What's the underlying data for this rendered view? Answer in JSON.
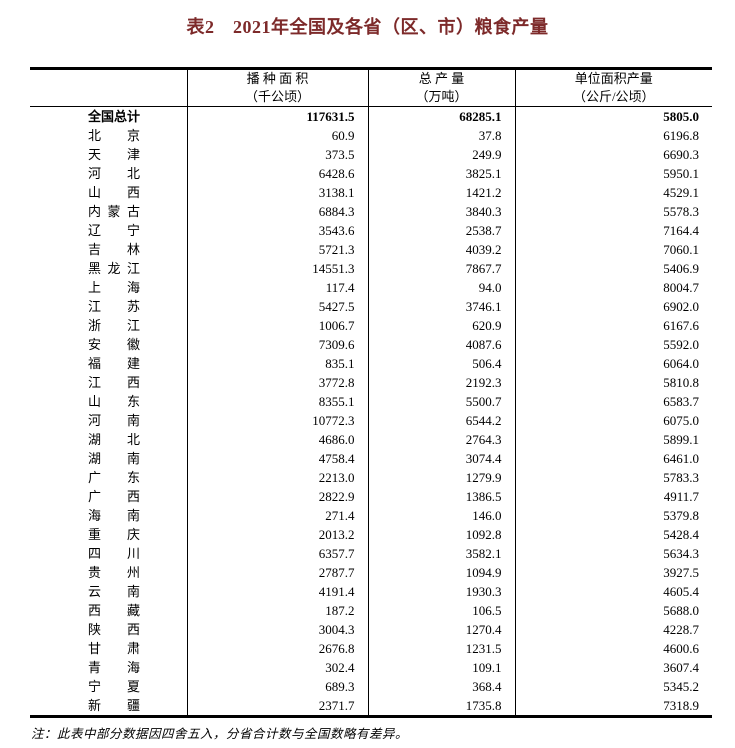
{
  "title": "表2　2021年全国及各省（区、市）粮食产量",
  "colors": {
    "title_text": "#7d2a2a",
    "border": "#000000",
    "body_text": "#000000",
    "background": "#ffffff"
  },
  "table": {
    "columns": [
      {
        "label": "",
        "unit": ""
      },
      {
        "label": "播 种 面 积",
        "unit": "（千公顷）"
      },
      {
        "label": "总 产 量",
        "unit": "（万吨）"
      },
      {
        "label": "单位面积产量",
        "unit": "（公斤/公顷）"
      }
    ],
    "rows": [
      {
        "region": "全国总计",
        "sown_area": "117631.5",
        "output": "68285.1",
        "yield": "5805.0",
        "bold": true
      },
      {
        "region": "北京",
        "sown_area": "60.9",
        "output": "37.8",
        "yield": "6196.8",
        "bold": false
      },
      {
        "region": "天津",
        "sown_area": "373.5",
        "output": "249.9",
        "yield": "6690.3",
        "bold": false
      },
      {
        "region": "河北",
        "sown_area": "6428.6",
        "output": "3825.1",
        "yield": "5950.1",
        "bold": false
      },
      {
        "region": "山西",
        "sown_area": "3138.1",
        "output": "1421.2",
        "yield": "4529.1",
        "bold": false
      },
      {
        "region": "内蒙古",
        "sown_area": "6884.3",
        "output": "3840.3",
        "yield": "5578.3",
        "bold": false
      },
      {
        "region": "辽宁",
        "sown_area": "3543.6",
        "output": "2538.7",
        "yield": "7164.4",
        "bold": false
      },
      {
        "region": "吉林",
        "sown_area": "5721.3",
        "output": "4039.2",
        "yield": "7060.1",
        "bold": false
      },
      {
        "region": "黑龙江",
        "sown_area": "14551.3",
        "output": "7867.7",
        "yield": "5406.9",
        "bold": false
      },
      {
        "region": "上海",
        "sown_area": "117.4",
        "output": "94.0",
        "yield": "8004.7",
        "bold": false
      },
      {
        "region": "江苏",
        "sown_area": "5427.5",
        "output": "3746.1",
        "yield": "6902.0",
        "bold": false
      },
      {
        "region": "浙江",
        "sown_area": "1006.7",
        "output": "620.9",
        "yield": "6167.6",
        "bold": false
      },
      {
        "region": "安徽",
        "sown_area": "7309.6",
        "output": "4087.6",
        "yield": "5592.0",
        "bold": false
      },
      {
        "region": "福建",
        "sown_area": "835.1",
        "output": "506.4",
        "yield": "6064.0",
        "bold": false
      },
      {
        "region": "江西",
        "sown_area": "3772.8",
        "output": "2192.3",
        "yield": "5810.8",
        "bold": false
      },
      {
        "region": "山东",
        "sown_area": "8355.1",
        "output": "5500.7",
        "yield": "6583.7",
        "bold": false
      },
      {
        "region": "河南",
        "sown_area": "10772.3",
        "output": "6544.2",
        "yield": "6075.0",
        "bold": false
      },
      {
        "region": "湖北",
        "sown_area": "4686.0",
        "output": "2764.3",
        "yield": "5899.1",
        "bold": false
      },
      {
        "region": "湖南",
        "sown_area": "4758.4",
        "output": "3074.4",
        "yield": "6461.0",
        "bold": false
      },
      {
        "region": "广东",
        "sown_area": "2213.0",
        "output": "1279.9",
        "yield": "5783.3",
        "bold": false
      },
      {
        "region": "广西",
        "sown_area": "2822.9",
        "output": "1386.5",
        "yield": "4911.7",
        "bold": false
      },
      {
        "region": "海南",
        "sown_area": "271.4",
        "output": "146.0",
        "yield": "5379.8",
        "bold": false
      },
      {
        "region": "重庆",
        "sown_area": "2013.2",
        "output": "1092.8",
        "yield": "5428.4",
        "bold": false
      },
      {
        "region": "四川",
        "sown_area": "6357.7",
        "output": "3582.1",
        "yield": "5634.3",
        "bold": false
      },
      {
        "region": "贵州",
        "sown_area": "2787.7",
        "output": "1094.9",
        "yield": "3927.5",
        "bold": false
      },
      {
        "region": "云南",
        "sown_area": "4191.4",
        "output": "1930.3",
        "yield": "4605.4",
        "bold": false
      },
      {
        "region": "西藏",
        "sown_area": "187.2",
        "output": "106.5",
        "yield": "5688.0",
        "bold": false
      },
      {
        "region": "陕西",
        "sown_area": "3004.3",
        "output": "1270.4",
        "yield": "4228.7",
        "bold": false
      },
      {
        "region": "甘肃",
        "sown_area": "2676.8",
        "output": "1231.5",
        "yield": "4600.6",
        "bold": false
      },
      {
        "region": "青海",
        "sown_area": "302.4",
        "output": "109.1",
        "yield": "3607.4",
        "bold": false
      },
      {
        "region": "宁夏",
        "sown_area": "689.3",
        "output": "368.4",
        "yield": "5345.2",
        "bold": false
      },
      {
        "region": "新疆",
        "sown_area": "2371.7",
        "output": "1735.8",
        "yield": "7318.9",
        "bold": false
      }
    ]
  },
  "footnote": "注：此表中部分数据因四舍五入，分省合计数与全国数略有差异。"
}
